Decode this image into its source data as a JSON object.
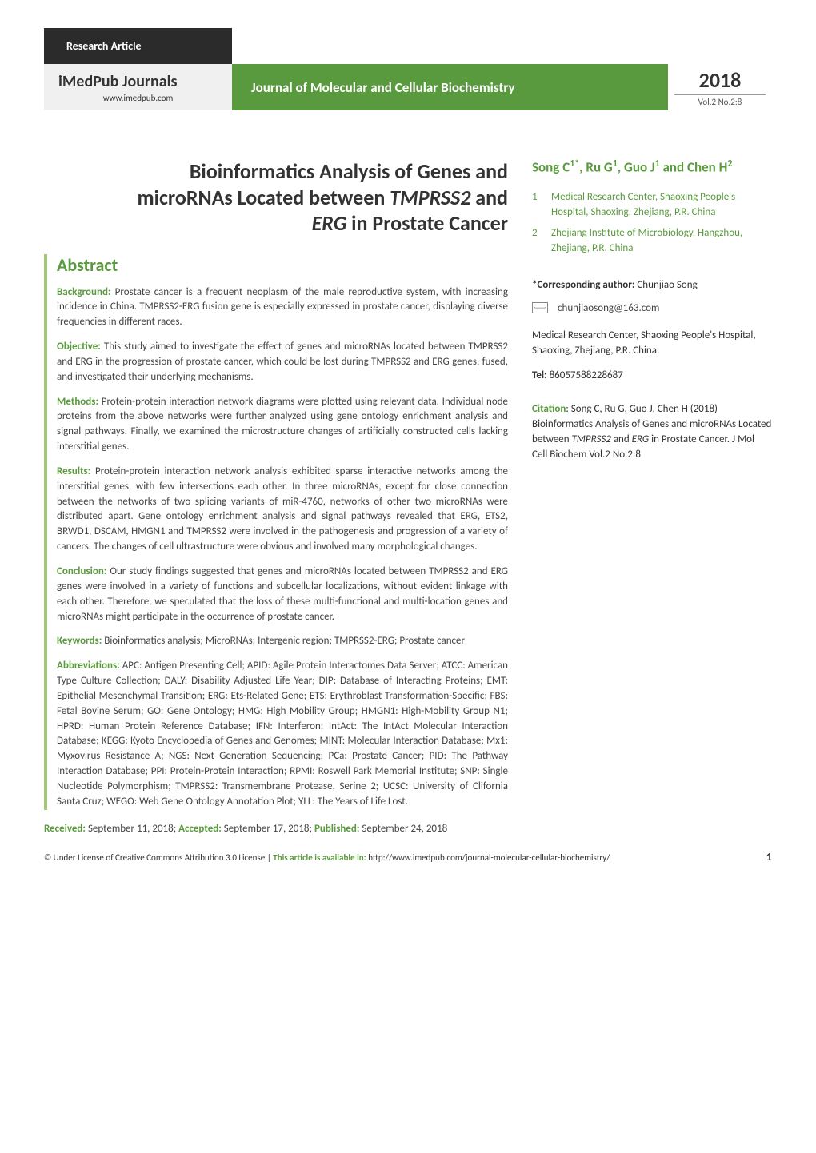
{
  "header": {
    "article_type": "Research Article",
    "journals_label": "iMedPub Journals",
    "journals_url": "www.imedpub.com",
    "journal_name": "Journal of Molecular and Cellular Biochemistry",
    "year": "2018",
    "volume": "Vol.2 No.2:8"
  },
  "title": {
    "line1": "Bioinformatics Analysis of Genes and",
    "line2_pre": "microRNAs Located between ",
    "line2_ital1": "TMPRSS2",
    "line2_mid": " and",
    "line3_ital": "ERG",
    "line3_post": " in Prostate Cancer"
  },
  "abstract": {
    "heading": "Abstract",
    "background_label": "Background:",
    "background": " Prostate cancer is a frequent neoplasm of the male reproductive system, with increasing incidence in China. TMPRSS2-ERG fusion gene is especially expressed in prostate cancer, displaying diverse frequencies in different races.",
    "objective_label": "Objective:",
    "objective": " This study aimed to investigate the effect of genes and microRNAs located between TMPRSS2 and ERG in the progression of prostate cancer, which could be lost during TMPRSS2 and ERG genes, fused, and investigated their underlying mechanisms.",
    "methods_label": "Methods:",
    "methods": " Protein-protein interaction network diagrams were plotted using relevant data. Individual node proteins from the above networks were further analyzed using gene ontology enrichment analysis and signal pathways. Finally, we examined the microstructure changes of artificially constructed cells lacking interstitial genes.",
    "results_label": "Results:",
    "results": " Protein-protein interaction network analysis exhibited sparse interactive networks among the interstitial genes, with few intersections each other. In three microRNAs, except for close connection between the networks of two splicing variants of miR-4760, networks of other two microRNAs were distributed apart. Gene ontology enrichment analysis and signal pathways revealed that ERG, ETS2, BRWD1, DSCAM, HMGN1 and TMPRSS2 were involved in the pathogenesis and progression of a variety of cancers. The changes of cell ultrastructure were obvious and involved many morphological changes.",
    "conclusion_label": "Conclusion:",
    "conclusion": " Our study findings suggested that genes and microRNAs located between TMPRSS2 and ERG genes were involved in a variety of functions and subcellular localizations, without evident linkage with each other. Therefore, we speculated that the loss of these multi-functional and multi-location genes and microRNAs might participate in the occurrence of prostate cancer.",
    "keywords_label": "Keywords:",
    "keywords": " Bioinformatics analysis; MicroRNAs; Intergenic region; TMPRSS2-ERG; Prostate cancer",
    "abbrev_label": "Abbreviations:",
    "abbrev": " APC: Antigen Presenting Cell; APID: Agile Protein Interactomes Data Server; ATCC: American Type Culture Collection; DALY: Disability Adjusted Life Year; DIP: Database of Interacting Proteins; EMT: Epithelial Mesenchymal Transition; ERG: Ets-Related Gene; ETS: Erythroblast Transformation-Specific; FBS: Fetal Bovine Serum; GO: Gene Ontology; HMG: High Mobility Group; HMGN1: High-Mobility Group N1; HPRD: Human Protein Reference Database; IFN: Interferon; IntAct: The IntAct Molecular Interaction Database; KEGG: Kyoto Encyclopedia of Genes and Genomes; MINT: Molecular Interaction Database; Mx1: Myxovirus Resistance A; NGS: Next Generation Sequencing; PCa: Prostate Cancer; PID: The Pathway Interaction Database; PPI: Protein-Protein Interaction; RPMI: Roswell Park Memorial Institute; SNP: Single Nucleotide Polymorphism; TMPRSS2: Transmembrane Protease, Serine 2; UCSC: University of Clifornia Santa Cruz; WEGO: Web Gene Ontology Annotation Plot; YLL: The Years of Life Lost."
  },
  "dates": {
    "received_label": "Received:",
    "received": " September 11, 2018; ",
    "accepted_label": "Accepted:",
    "accepted": " September 17, 2018; ",
    "published_label": "Published:",
    "published": " September 24, 2018"
  },
  "authors": {
    "a1": "Song C",
    "a1_sup": "1*",
    "sep1": ", ",
    "a2": "Ru G",
    "a2_sup": "1",
    "sep2": ", ",
    "a3": "Guo J",
    "a3_sup": "1",
    "sep3": " and ",
    "a4": "Chen H",
    "a4_sup": "2"
  },
  "affiliations": [
    {
      "num": "1",
      "text": "Medical Research Center, Shaoxing People's Hospital, Shaoxing, Zhejiang, P.R. China"
    },
    {
      "num": "2",
      "text": "Zhejiang Institute of Microbiology, Hangzhou, Zhejiang, P.R. China"
    }
  ],
  "corresponding": {
    "label": "*Corresponding author:",
    "name": "  Chunjiao Song",
    "email": "chunjiaosong@163.com",
    "address": "Medical Research Center, Shaoxing People's Hospital, Shaoxing, Zhejiang, P.R. China.",
    "tel_label": "Tel:",
    "tel": " 86057588228687"
  },
  "citation": {
    "label": "Citation",
    "sep": ": ",
    "text_pre": "Song C, Ru G, Guo J, Chen H (2018) Bioinformatics Analysis of Genes and microRNAs Located between ",
    "ital1": "TMPRSS2",
    "mid": " and ",
    "ital2": "ERG",
    "post": " in Prostate Cancer. J Mol Cell Biochem Vol.2 No.2:8"
  },
  "footer": {
    "license": "© Under License of Creative Commons Attribution 3.0 License | ",
    "avail_label": "This article is available in:",
    "avail_url": " http://www.imedpub.com/journal-molecular-cellular-biochemistry/",
    "page_num": "1"
  },
  "colors": {
    "brand_green": "#5a9a3e",
    "light_green": "#a3c978",
    "dark_tab": "#2b2b2b",
    "gray_bg": "#f0f0f0"
  }
}
